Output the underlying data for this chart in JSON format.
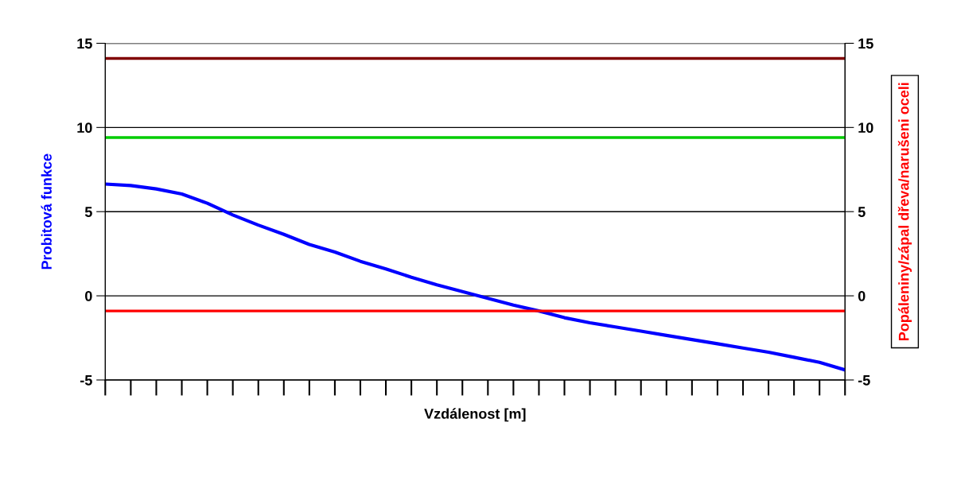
{
  "chart_data": {
    "type": "line",
    "categories": [
      null,
      null,
      null,
      null,
      null,
      null,
      null,
      null,
      null,
      null,
      null,
      null,
      null,
      null,
      null,
      null,
      null,
      null,
      null,
      null,
      null,
      null,
      null,
      null,
      null,
      null,
      null,
      null,
      null,
      null
    ],
    "series": [
      {
        "color": "#0000ff",
        "values": [
          6.64,
          6.55,
          6.35,
          6.05,
          5.5,
          4.8,
          4.2,
          3.65,
          3.05,
          2.6,
          2.05,
          1.6,
          1.1,
          0.65,
          0.25,
          -0.15,
          -0.55,
          -0.9,
          -1.3,
          -1.6,
          -1.85,
          -2.1,
          -2.35,
          -2.6,
          -2.85,
          -3.1,
          -3.35,
          -3.65,
          -3.95,
          -4.4
        ]
      }
    ],
    "xlabel": "Vzdálenost [m]",
    "ylabel": "Probitová funkce",
    "y2label": "Popáleniny/zápal dřeva/narušeni oceli",
    "ylim": [
      -5,
      15
    ],
    "yticks": [
      -5,
      0,
      5,
      10,
      15
    ],
    "y2lim": [
      -5,
      15
    ],
    "y2ticks": [
      -5,
      0,
      5,
      10,
      15
    ],
    "ref_lines": [
      {
        "axis": "y2",
        "value": 14.1,
        "color": "#800000"
      },
      {
        "axis": "y2",
        "value": 9.4,
        "color": "#00cc00"
      },
      {
        "axis": "y2",
        "value": -0.9,
        "color": "#ff0000"
      }
    ],
    "grid": "y",
    "marker": "none",
    "line_style": "solid"
  }
}
